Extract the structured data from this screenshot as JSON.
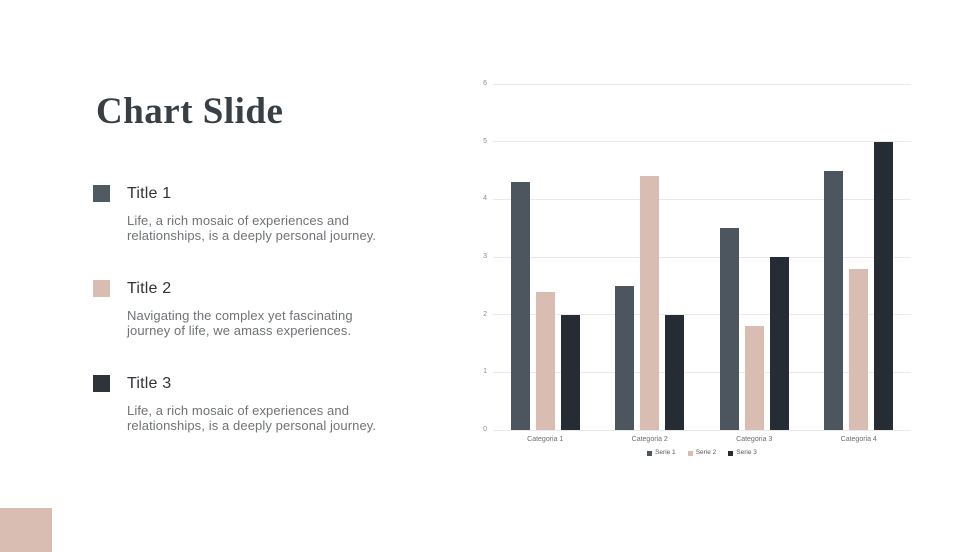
{
  "slide": {
    "title": "Chart Slide",
    "accent_color": "#d9bcb2",
    "items": [
      {
        "label": "Title 1",
        "description": "Life, a rich mosaic of experiences and relationships, is a deeply personal journey.",
        "color": "#505a63"
      },
      {
        "label": "Title 2",
        "description": "Navigating the complex yet fascinating journey of life, we amass experiences.",
        "color": "#d9bcb2"
      },
      {
        "label": "Title 3",
        "description": "Life, a rich mosaic of experiences and relationships, is a deeply personal journey.",
        "color": "#2e343a"
      }
    ]
  },
  "chart_data": {
    "type": "bar",
    "title": "",
    "xlabel": "",
    "ylabel": "",
    "categories": [
      "Categoria 1",
      "Categoria 2",
      "Categoria 3",
      "Categoria 4"
    ],
    "series": [
      {
        "name": "Serie 1",
        "color": "#4d565f",
        "values": [
          4.3,
          2.5,
          3.5,
          4.5
        ]
      },
      {
        "name": "Serie 2",
        "color": "#d9bcb2",
        "values": [
          2.4,
          4.4,
          1.8,
          2.8
        ]
      },
      {
        "name": "Serie 3",
        "color": "#262c34",
        "values": [
          2.0,
          2.0,
          3.0,
          5.0
        ]
      }
    ],
    "ylim": [
      0,
      6
    ],
    "ytick_interval": 1,
    "yticks": [
      0,
      1,
      2,
      3,
      4,
      5,
      6
    ],
    "grid": true,
    "legend_position": "bottom"
  }
}
